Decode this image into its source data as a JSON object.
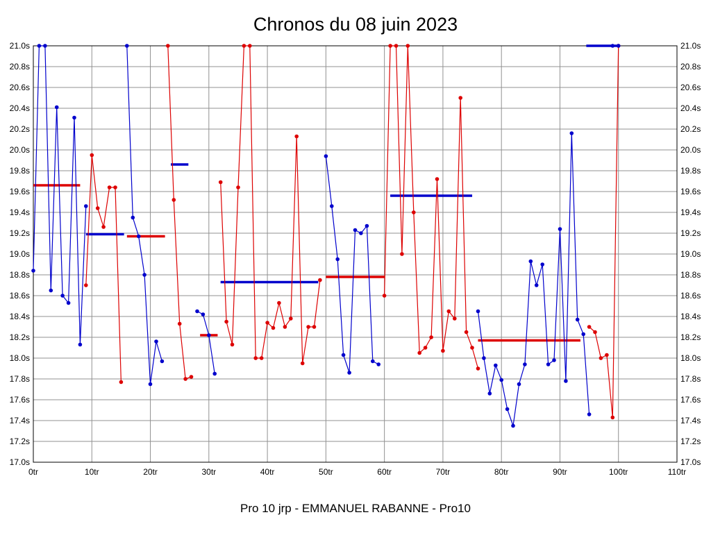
{
  "header": {
    "title": "Chronos du 08 juin 2023"
  },
  "footer": {
    "subtitle": "Pro 10 jrp - EMMANUEL RABANNE - Pro10"
  },
  "colors": {
    "blue": "#0000cc",
    "red": "#dd0000",
    "grid": "#909090",
    "axis": "#000000",
    "border": "#000000",
    "background": "#ffffff"
  },
  "chart_data": {
    "type": "line",
    "title": "Chronos du 08 juin 2023",
    "subtitle": "Pro 10 jrp - EMMANUEL RABANNE - Pro10",
    "xlabel": "",
    "ylabel": "",
    "x_unit": "tr",
    "y_unit": "s",
    "xlim": [
      0,
      110
    ],
    "ylim": [
      17.0,
      21.0
    ],
    "grid": true,
    "x_ticks": [
      "0tr",
      "10tr",
      "20tr",
      "30tr",
      "40tr",
      "50tr",
      "60tr",
      "70tr",
      "80tr",
      "90tr",
      "100tr",
      "110tr"
    ],
    "y_ticks": [
      "17.0s",
      "17.2s",
      "17.4s",
      "17.6s",
      "17.8s",
      "18.0s",
      "18.2s",
      "18.4s",
      "18.6s",
      "18.8s",
      "19.0s",
      "19.2s",
      "19.4s",
      "19.6s",
      "19.8s",
      "20.0s",
      "20.2s",
      "20.4s",
      "20.6s",
      "20.8s",
      "21.0s"
    ],
    "series": [
      {
        "name": "stint-1",
        "color": "blue",
        "points": [
          [
            0,
            18.84
          ],
          [
            1,
            21.0
          ],
          [
            2,
            21.0
          ],
          [
            3,
            18.65
          ],
          [
            4,
            20.41
          ],
          [
            5,
            18.6
          ],
          [
            6,
            18.53
          ],
          [
            7,
            20.31
          ],
          [
            8,
            18.13
          ],
          [
            9,
            19.46
          ]
        ]
      },
      {
        "name": "stint-2",
        "color": "red",
        "points": [
          [
            9,
            18.7
          ],
          [
            10,
            19.95
          ],
          [
            11,
            19.44
          ],
          [
            12,
            19.26
          ],
          [
            13,
            19.64
          ],
          [
            14,
            19.64
          ],
          [
            15,
            17.77
          ]
        ]
      },
      {
        "name": "stint-3",
        "color": "blue",
        "points": [
          [
            16,
            21.0
          ],
          [
            17,
            19.35
          ],
          [
            18,
            19.17
          ],
          [
            19,
            18.8
          ],
          [
            20,
            17.75
          ],
          [
            21,
            18.16
          ],
          [
            22,
            17.97
          ]
        ]
      },
      {
        "name": "stint-4",
        "color": "red",
        "points": [
          [
            23,
            21.0
          ],
          [
            24,
            19.52
          ],
          [
            25,
            18.33
          ],
          [
            26,
            17.8
          ],
          [
            27,
            17.82
          ]
        ]
      },
      {
        "name": "stint-5",
        "color": "blue",
        "points": [
          [
            28,
            18.45
          ],
          [
            29,
            18.42
          ],
          [
            30,
            18.22
          ],
          [
            31,
            17.85
          ]
        ]
      },
      {
        "name": "stint-6",
        "color": "red",
        "points": [
          [
            32,
            19.69
          ],
          [
            33,
            18.35
          ],
          [
            34,
            18.13
          ],
          [
            35,
            19.64
          ],
          [
            36,
            21.0
          ],
          [
            37,
            21.0
          ],
          [
            38,
            18.0
          ],
          [
            39,
            18.0
          ],
          [
            40,
            18.34
          ],
          [
            41,
            18.29
          ],
          [
            42,
            18.53
          ],
          [
            43,
            18.3
          ],
          [
            44,
            18.38
          ],
          [
            45,
            20.13
          ],
          [
            46,
            17.95
          ],
          [
            47,
            18.3
          ],
          [
            48,
            18.3
          ],
          [
            49,
            18.75
          ]
        ]
      },
      {
        "name": "stint-7",
        "color": "blue",
        "points": [
          [
            50,
            19.94
          ],
          [
            51,
            19.46
          ],
          [
            52,
            18.95
          ],
          [
            53,
            18.03
          ],
          [
            54,
            17.86
          ],
          [
            55,
            19.23
          ],
          [
            56,
            19.2
          ],
          [
            57,
            19.27
          ],
          [
            58,
            17.97
          ],
          [
            59,
            17.94
          ]
        ]
      },
      {
        "name": "stint-8",
        "color": "red",
        "points": [
          [
            60,
            18.6
          ],
          [
            61,
            21.0
          ],
          [
            62,
            21.0
          ],
          [
            63,
            19.0
          ],
          [
            64,
            21.0
          ],
          [
            65,
            19.4
          ],
          [
            66,
            18.05
          ],
          [
            67,
            18.1
          ],
          [
            68,
            18.2
          ],
          [
            69,
            19.72
          ],
          [
            70,
            18.07
          ],
          [
            71,
            18.45
          ],
          [
            72,
            18.38
          ],
          [
            73,
            20.5
          ],
          [
            74,
            18.25
          ],
          [
            75,
            18.1
          ],
          [
            76,
            17.9
          ]
        ]
      },
      {
        "name": "stint-9",
        "color": "blue",
        "points": [
          [
            76,
            18.45
          ],
          [
            77,
            18.0
          ],
          [
            78,
            17.66
          ],
          [
            79,
            17.93
          ],
          [
            80,
            17.79
          ],
          [
            81,
            17.51
          ],
          [
            82,
            17.35
          ],
          [
            83,
            17.75
          ],
          [
            84,
            17.94
          ],
          [
            85,
            18.93
          ],
          [
            86,
            18.7
          ],
          [
            87,
            18.9
          ],
          [
            88,
            17.94
          ],
          [
            89,
            17.98
          ],
          [
            90,
            19.24
          ],
          [
            91,
            17.78
          ],
          [
            92,
            20.16
          ],
          [
            93,
            18.37
          ],
          [
            94,
            18.23
          ],
          [
            95,
            17.46
          ]
        ]
      },
      {
        "name": "stint-10",
        "color": "red",
        "points": [
          [
            95,
            18.3
          ],
          [
            96,
            18.25
          ],
          [
            97,
            18.0
          ],
          [
            98,
            18.03
          ],
          [
            99,
            17.43
          ],
          [
            100,
            21.0
          ]
        ]
      },
      {
        "name": "stint-11",
        "color": "blue",
        "points": [
          [
            99,
            21.0
          ],
          [
            100,
            21.0
          ]
        ]
      }
    ],
    "average_bars": [
      {
        "color": "red",
        "x0": 0,
        "x1": 8,
        "y": 19.66
      },
      {
        "color": "blue",
        "x0": 9,
        "x1": 15.5,
        "y": 19.19
      },
      {
        "color": "red",
        "x0": 16,
        "x1": 22.5,
        "y": 19.17
      },
      {
        "color": "blue",
        "x0": 23.5,
        "x1": 26.5,
        "y": 19.86
      },
      {
        "color": "red",
        "x0": 28.5,
        "x1": 31.5,
        "y": 18.22
      },
      {
        "color": "blue",
        "x0": 32,
        "x1": 48.7,
        "y": 18.73
      },
      {
        "color": "red",
        "x0": 50,
        "x1": 60,
        "y": 18.78
      },
      {
        "color": "blue",
        "x0": 61,
        "x1": 75,
        "y": 19.56
      },
      {
        "color": "red",
        "x0": 76,
        "x1": 93.5,
        "y": 18.17
      },
      {
        "color": "blue",
        "x0": 94.5,
        "x1": 100,
        "y": 21.0
      }
    ],
    "legend_position": "none"
  }
}
